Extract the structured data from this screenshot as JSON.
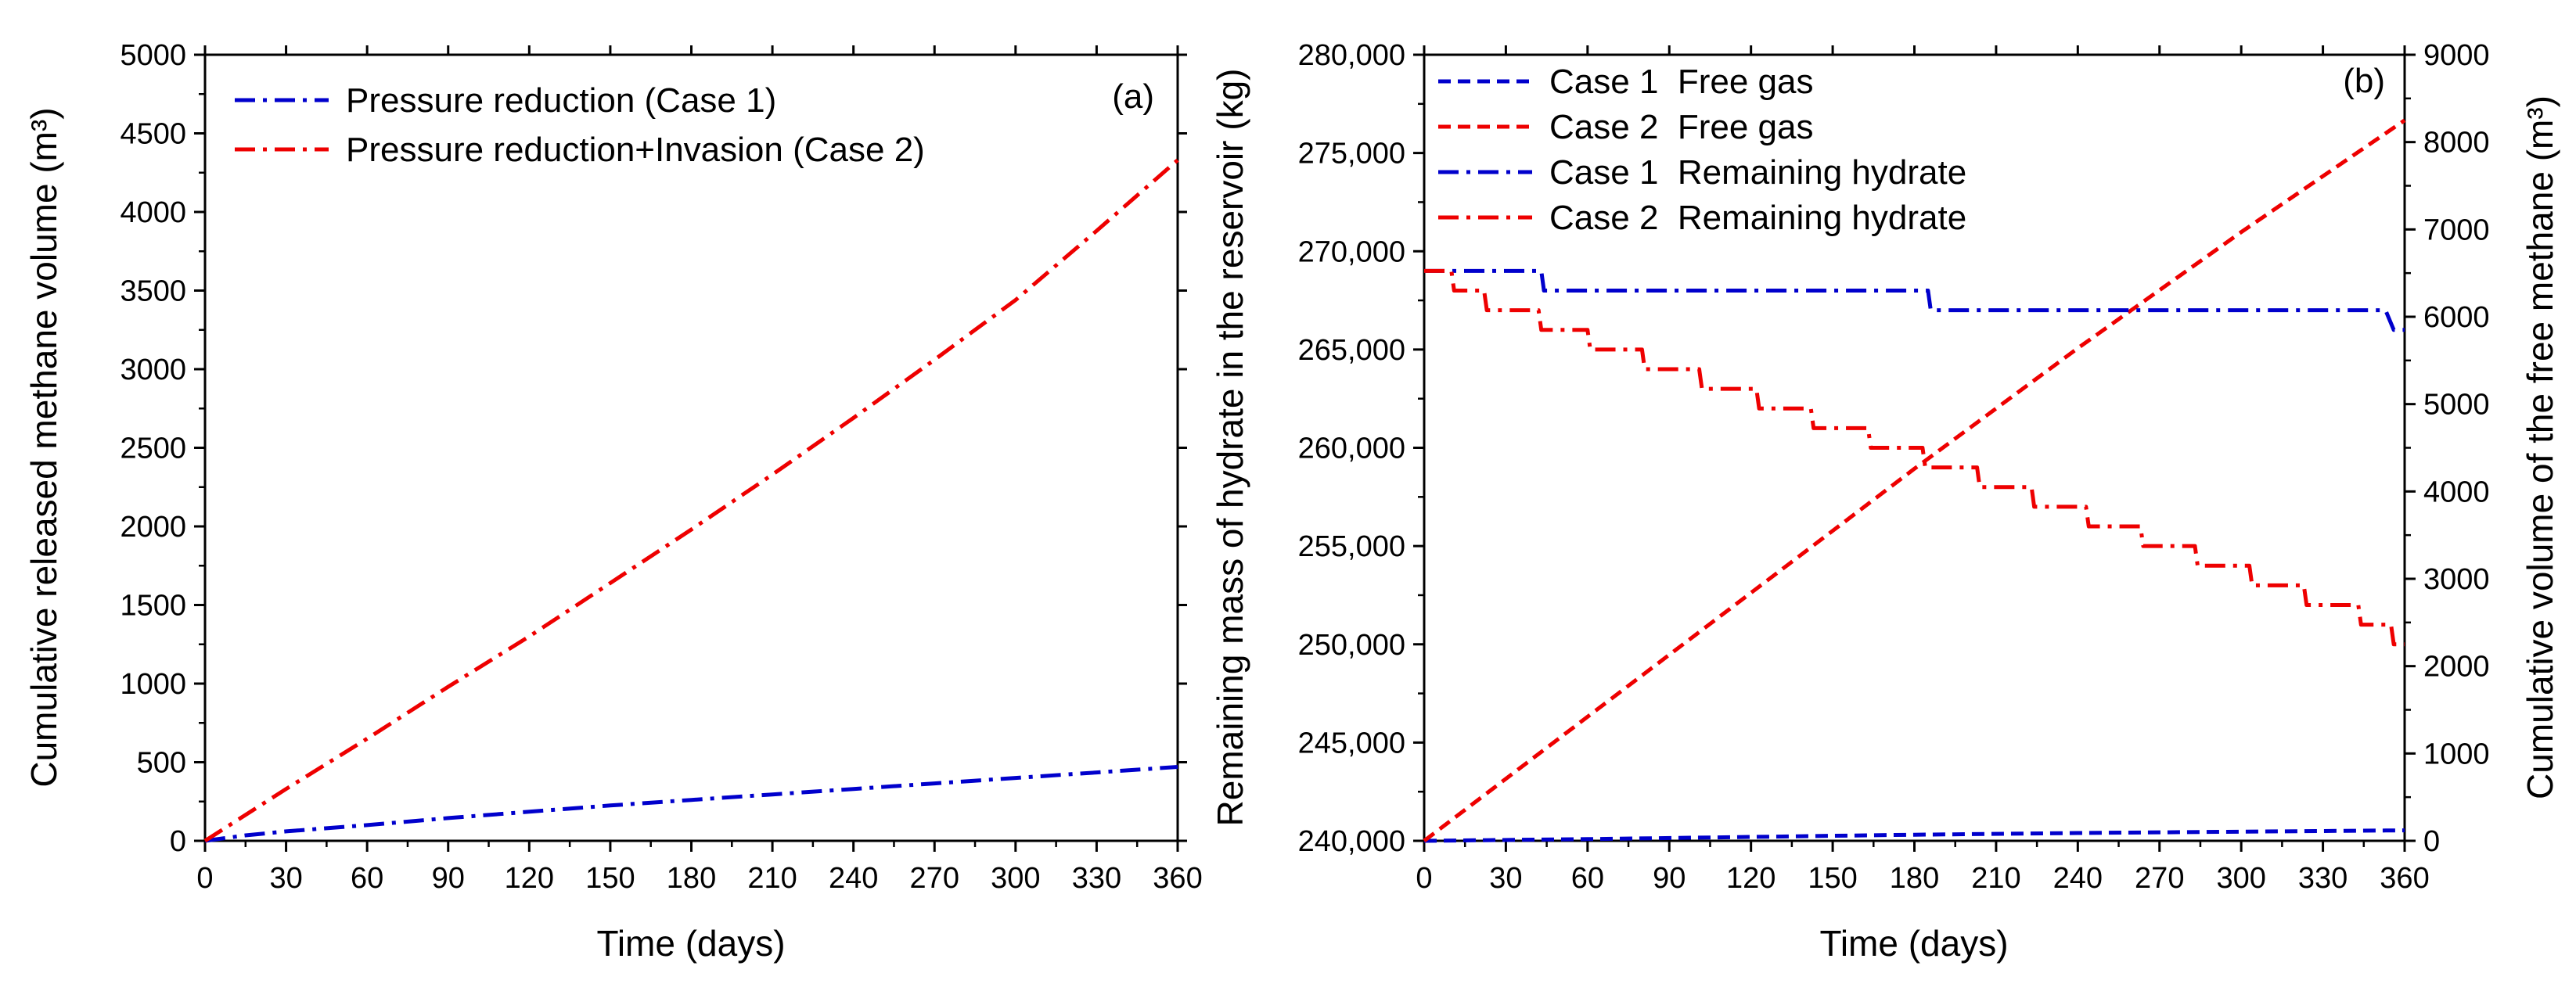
{
  "chart_data": [
    {
      "type": "line",
      "panel_label": "(a)",
      "xlabel": "Time (days)",
      "ylabel": "Cumulative released methane volume (m³)",
      "xlim": [
        0,
        360
      ],
      "ylim": [
        0,
        5000
      ],
      "xticks": [
        0,
        30,
        60,
        90,
        120,
        150,
        180,
        210,
        240,
        270,
        300,
        330,
        360
      ],
      "yticks": [
        0,
        500,
        1000,
        1500,
        2000,
        2500,
        3000,
        3500,
        4000,
        4500,
        5000
      ],
      "legend_position": "top-left",
      "series": [
        {
          "name": "Pressure reduction (Case 1)",
          "color": "#0000cc",
          "style": "dash-dot",
          "x": [
            0,
            15,
            30,
            60,
            90,
            120,
            150,
            180,
            210,
            240,
            270,
            300,
            330,
            360
          ],
          "y": [
            0,
            35,
            60,
            100,
            145,
            185,
            225,
            260,
            295,
            330,
            365,
            400,
            435,
            470
          ]
        },
        {
          "name": "Pressure reduction+Invasion (Case 2)",
          "color": "#ee0000",
          "style": "dash-dot",
          "x": [
            0,
            30,
            60,
            90,
            120,
            150,
            180,
            210,
            240,
            270,
            300,
            330,
            360
          ],
          "y": [
            0,
            330,
            650,
            980,
            1300,
            1640,
            1980,
            2330,
            2690,
            3060,
            3440,
            3880,
            4330
          ]
        }
      ]
    },
    {
      "type": "line",
      "panel_label": "(b)",
      "xlabel": "Time (days)",
      "ylabel": "Remaining mass of hydrate in the reservoir (kg)",
      "y2label": "Cumulative volume of the free methane (m³)",
      "xlim": [
        0,
        360
      ],
      "ylim": [
        240000,
        280000
      ],
      "y2lim": [
        0,
        9000
      ],
      "xticks": [
        0,
        30,
        60,
        90,
        120,
        150,
        180,
        210,
        240,
        270,
        300,
        330,
        360
      ],
      "yticks": [
        "240,000",
        "245,000",
        "250,000",
        "255,000",
        "260,000",
        "265,000",
        "270,000",
        "275,000",
        "280,000"
      ],
      "y2ticks": [
        0,
        1000,
        2000,
        3000,
        4000,
        5000,
        6000,
        7000,
        8000,
        9000
      ],
      "legend_position": "top-left",
      "series": [
        {
          "name": "Case 1  Free gas",
          "color": "#0000cc",
          "style": "dash",
          "axis": "right",
          "x": [
            0,
            60,
            120,
            180,
            240,
            300,
            360
          ],
          "y": [
            0,
            20,
            45,
            70,
            90,
            105,
            120
          ]
        },
        {
          "name": "Case 2  Free gas",
          "color": "#ee0000",
          "style": "dash",
          "axis": "right",
          "x": [
            0,
            60,
            120,
            180,
            240,
            300,
            360
          ],
          "y": [
            0,
            1420,
            2840,
            4260,
            5640,
            6970,
            8250
          ]
        },
        {
          "name": "Case 1  Remaining hydrate",
          "color": "#0000cc",
          "style": "dash-dot",
          "axis": "left",
          "x": [
            0,
            43,
            44,
            185,
            186,
            353,
            356,
            360
          ],
          "y": [
            269000,
            269000,
            268000,
            268000,
            267000,
            267000,
            266000,
            266000
          ]
        },
        {
          "name": "Case 2  Remaining hydrate",
          "color": "#ee0000",
          "style": "dash-dot",
          "axis": "left",
          "x": [
            0,
            10,
            11,
            22,
            23,
            42,
            43,
            60,
            61,
            80,
            81,
            101,
            102,
            122,
            123,
            142,
            143,
            163,
            164,
            183,
            184,
            203,
            204,
            223,
            224,
            243,
            244,
            263,
            264,
            283,
            284,
            303,
            304,
            323,
            324,
            343,
            344,
            355,
            356,
            360
          ],
          "y": [
            269000,
            269000,
            268000,
            268000,
            267000,
            267000,
            266000,
            266000,
            265000,
            265000,
            264000,
            264000,
            263000,
            263000,
            262000,
            262000,
            261000,
            261000,
            260000,
            260000,
            259000,
            259000,
            258000,
            258000,
            257000,
            257000,
            256000,
            256000,
            255000,
            255000,
            254000,
            254000,
            253000,
            253000,
            252000,
            252000,
            251000,
            251000,
            250000,
            250000
          ]
        }
      ]
    }
  ]
}
